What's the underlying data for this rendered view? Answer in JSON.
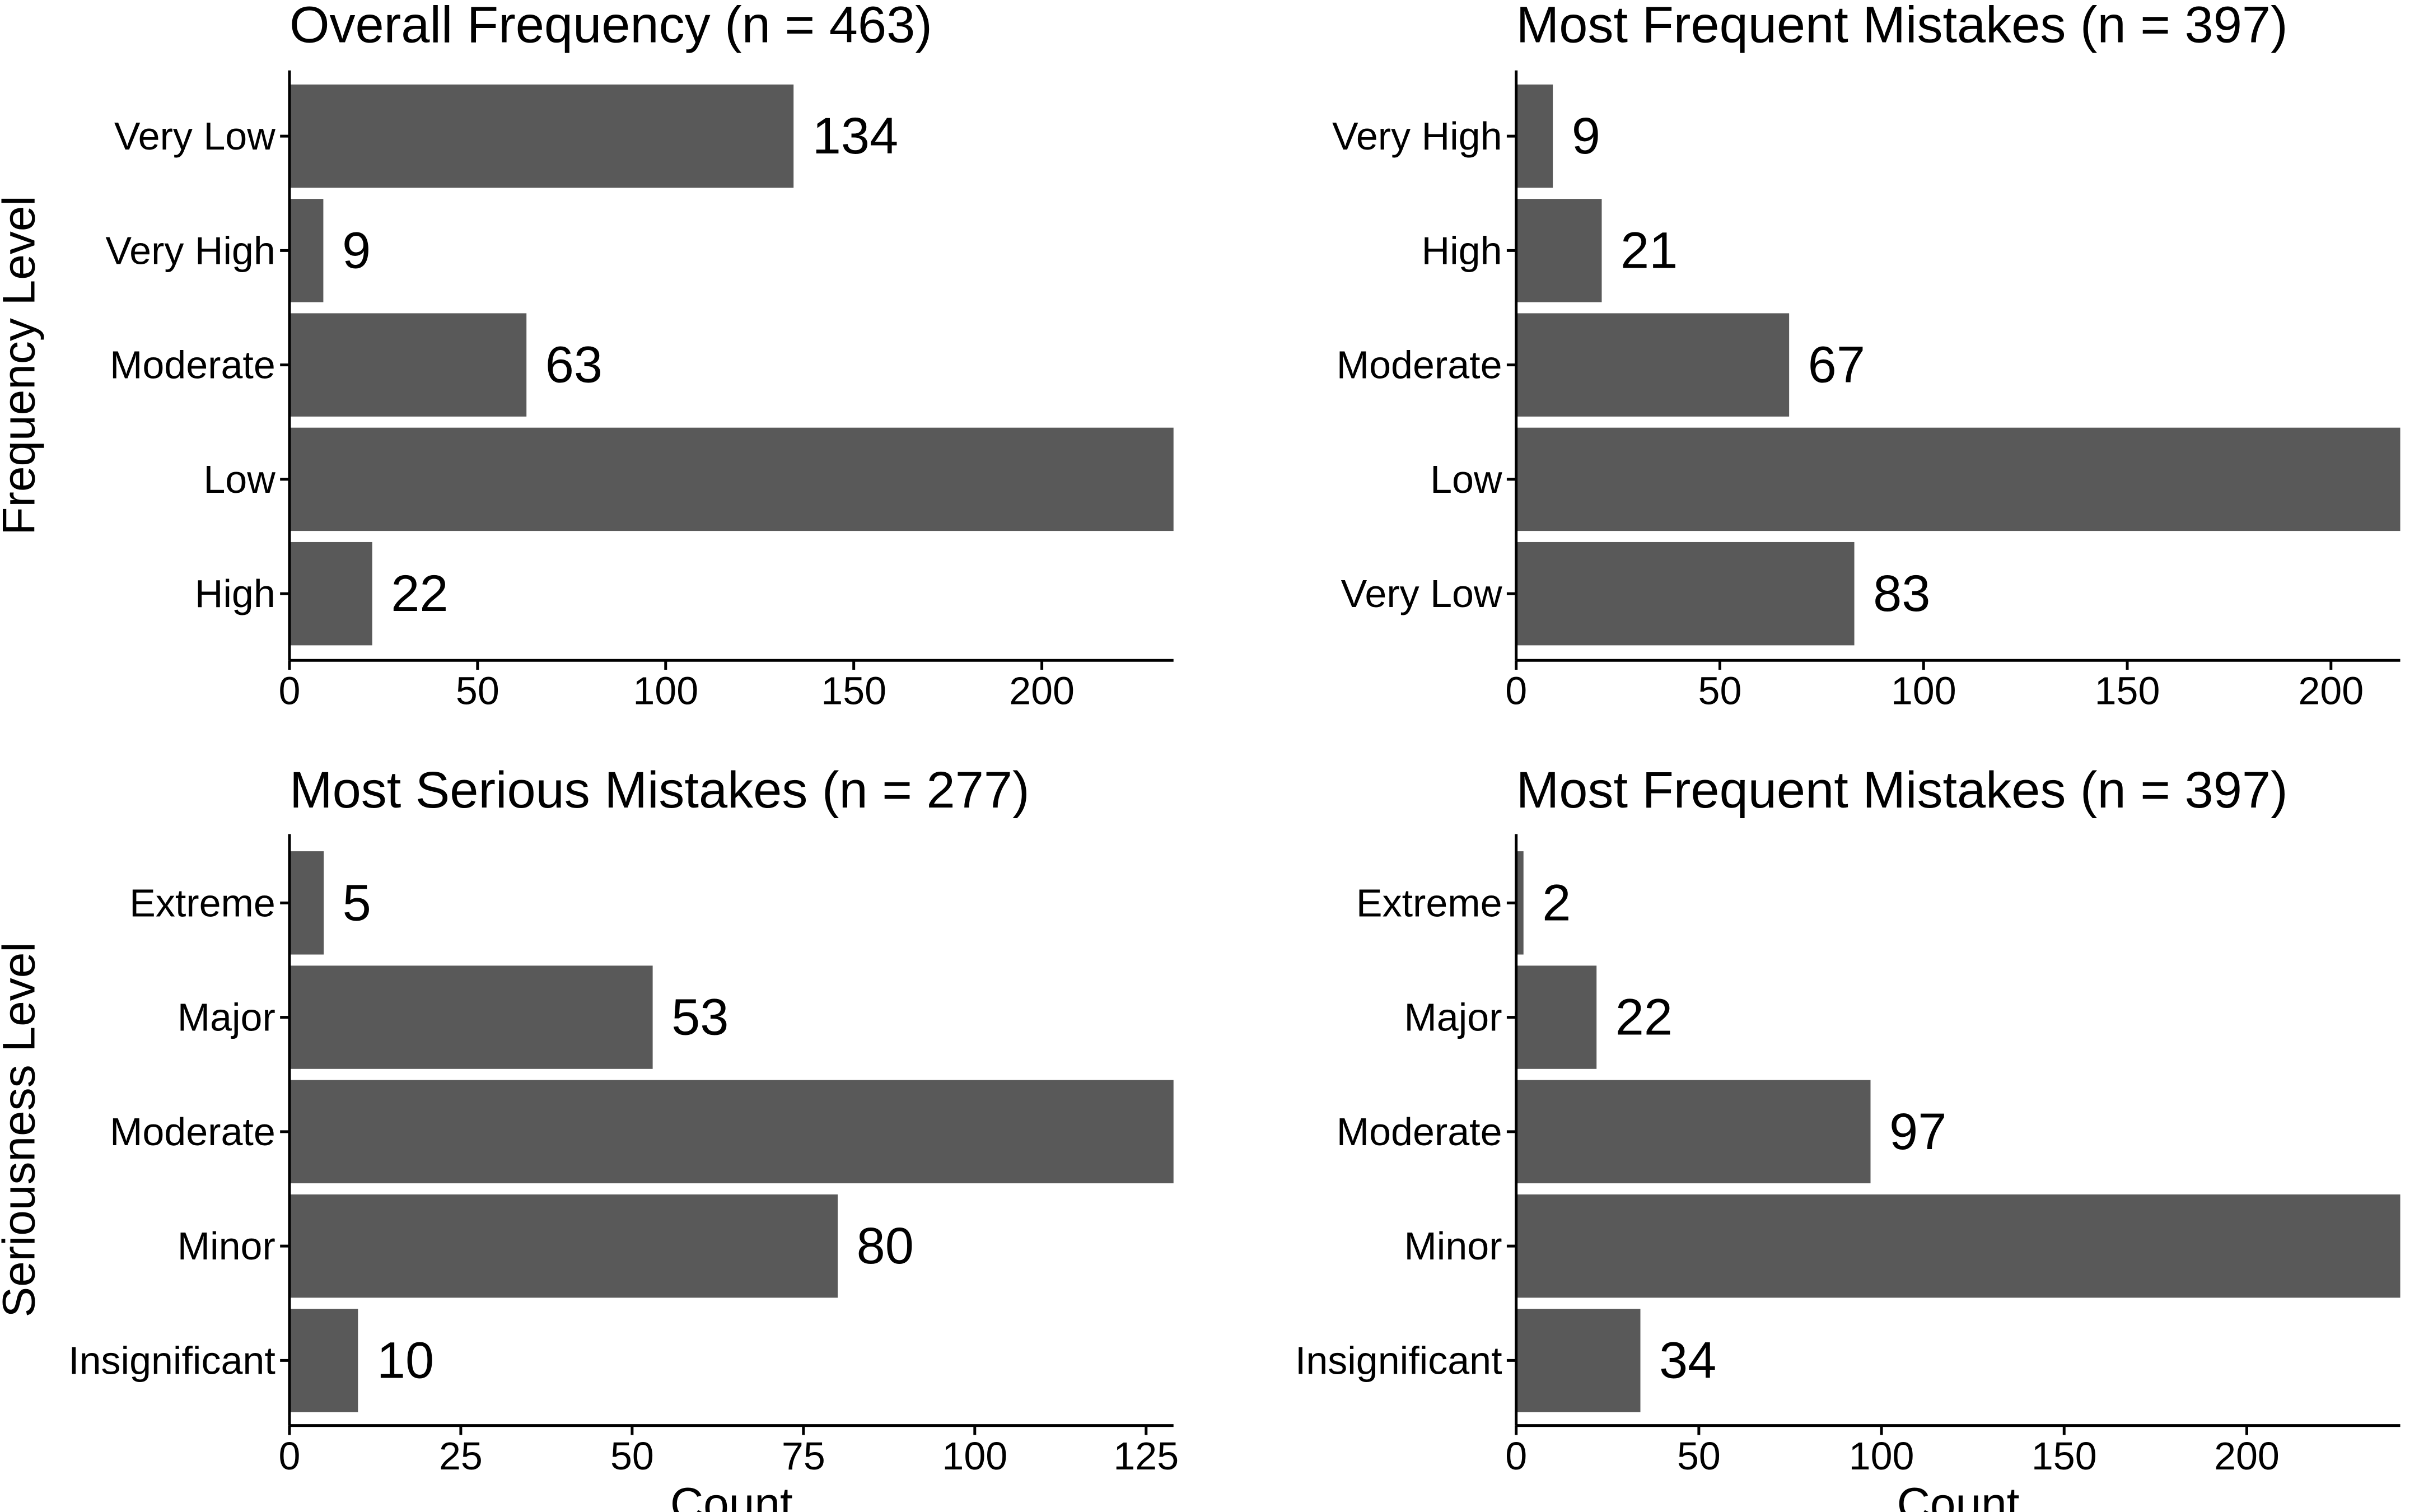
{
  "bar_color": "#595959",
  "chart_data": [
    {
      "type": "bar",
      "orientation": "horizontal",
      "title": "Overall Frequency (n = 463)",
      "xlabel": "",
      "ylabel": "Frequency Level",
      "categories": [
        "Very Low",
        "Very High",
        "Moderate",
        "Low",
        "High"
      ],
      "values": [
        134,
        9,
        63,
        235,
        22
      ],
      "data_labels": [
        "134",
        "9",
        "63",
        "",
        "22"
      ],
      "xlim": [
        0,
        235
      ],
      "xticks": [
        0,
        50,
        100,
        150,
        200
      ],
      "grid": false
    },
    {
      "type": "bar",
      "orientation": "horizontal",
      "title": "Most Frequent Mistakes (n = 397)",
      "xlabel": "",
      "ylabel": "",
      "categories": [
        "Very High",
        "High",
        "Moderate",
        "Low",
        "Very Low"
      ],
      "values": [
        9,
        21,
        67,
        217,
        83
      ],
      "data_labels": [
        "9",
        "21",
        "67",
        "",
        "83"
      ],
      "xlim": [
        0,
        217
      ],
      "xticks": [
        0,
        50,
        100,
        150,
        200
      ],
      "grid": false
    },
    {
      "type": "bar",
      "orientation": "horizontal",
      "title": "Most Serious Mistakes (n = 277)",
      "xlabel": "Count",
      "ylabel": "Seriousness Level",
      "categories": [
        "Extreme",
        "Major",
        "Moderate",
        "Minor",
        "Insignificant"
      ],
      "values": [
        5,
        53,
        129,
        80,
        10
      ],
      "data_labels": [
        "5",
        "53",
        "",
        "80",
        "10"
      ],
      "xlim": [
        0,
        129
      ],
      "xticks": [
        0,
        25,
        50,
        75,
        100,
        125
      ],
      "grid": false
    },
    {
      "type": "bar",
      "orientation": "horizontal",
      "title": "Most Frequent Mistakes (n = 397)",
      "xlabel": "Count",
      "ylabel": "",
      "categories": [
        "Extreme",
        "Major",
        "Moderate",
        "Minor",
        "Insignificant"
      ],
      "values": [
        2,
        22,
        97,
        242,
        34
      ],
      "data_labels": [
        "2",
        "22",
        "97",
        "",
        "34"
      ],
      "xlim": [
        0,
        242
      ],
      "xticks": [
        0,
        50,
        100,
        150,
        200
      ],
      "grid": false
    }
  ]
}
